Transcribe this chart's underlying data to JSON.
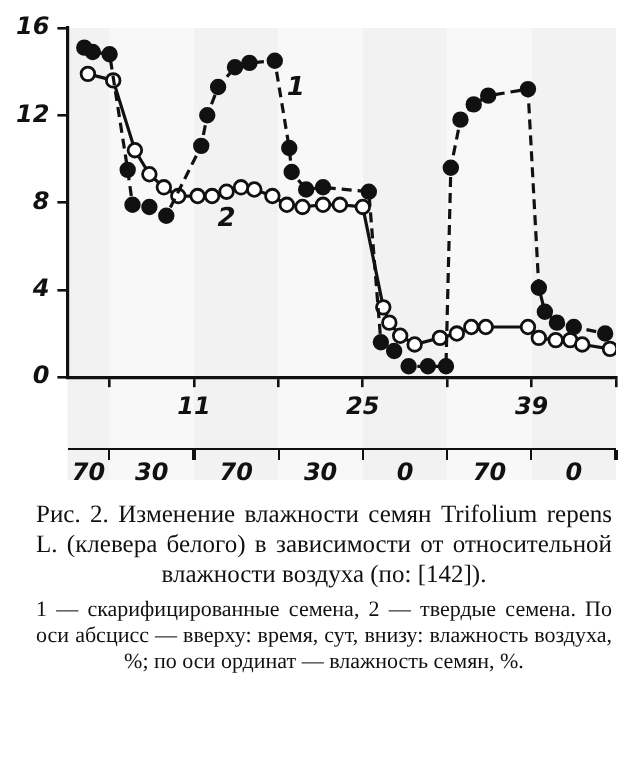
{
  "chart_data": {
    "type": "line",
    "title": "Рис. 2. Изменение влажности семян Trifolium repens L. (клевера белого) в зависимости от относительной влажности воздуха (по: [142]).",
    "annotations": [
      "1 — скарифицированные семена, 2 — твердые семена. По оси абсцисс — вверху: время, сут, внизу: влажность воздуха, %; по оси ординат — влажность семян, %."
    ],
    "xlim": [
      0.5,
      46
    ],
    "xticks": [
      {
        "value": 4,
        "label": null
      },
      11,
      {
        "value": 18,
        "label": null
      },
      25,
      {
        "value": 32,
        "label": null
      },
      39,
      {
        "value": 46,
        "label": null
      }
    ],
    "bands": [
      {
        "axis": "x",
        "from": 0.5,
        "to": 4,
        "label": "70",
        "color": "#f2f2f2"
      },
      {
        "axis": "x",
        "from": 4,
        "to": 11,
        "label": "30",
        "color": "#f8f8f8"
      },
      {
        "axis": "x",
        "from": 11,
        "to": 18,
        "label": "70",
        "color": "#f2f2f2"
      },
      {
        "axis": "x",
        "from": 18,
        "to": 25,
        "label": "30",
        "color": "#f8f8f8"
      },
      {
        "axis": "x",
        "from": 25,
        "to": 32,
        "label": "0",
        "color": "#f2f2f2"
      },
      {
        "axis": "x",
        "from": 32,
        "to": 39,
        "label": "70",
        "color": "#f8f8f8"
      },
      {
        "axis": "x",
        "from": 39,
        "to": 46,
        "label": "0",
        "color": "#f2f2f2"
      }
    ],
    "ylim": [
      0,
      16
    ],
    "yticks": [
      0,
      4,
      8,
      12,
      16
    ],
    "grid": false,
    "legend": false,
    "series": [
      {
        "name": "1",
        "color": "#111111",
        "marker": "circle",
        "line_style": "dashed",
        "x": [
          1.9,
          2.6,
          4,
          5.5,
          5.9,
          7.3,
          8.7,
          11.6,
          12.1,
          13,
          14.4,
          15.6,
          17.7,
          18.9,
          19.1,
          20.3,
          21.7,
          25.5,
          26.5,
          27.6,
          28.8,
          30.4,
          31.9,
          32.3,
          33.1,
          34.2,
          35.4,
          38.7,
          39.6,
          40.1,
          41.1,
          42.5,
          45.1
        ],
        "values": [
          15.1,
          14.9,
          14.8,
          9.5,
          7.9,
          7.8,
          7.4,
          10.6,
          12.0,
          13.3,
          14.2,
          14.4,
          14.5,
          10.5,
          9.4,
          8.6,
          8.7,
          8.5,
          1.6,
          1.2,
          0.5,
          0.5,
          0.5,
          9.6,
          11.8,
          12.5,
          12.9,
          13.2,
          4.1,
          3.0,
          2.5,
          2.3,
          2.0
        ]
      },
      {
        "name": "2",
        "color": "#111111",
        "marker": "circle",
        "line_style": "solid",
        "x": [
          2.2,
          4.3,
          6.1,
          7.3,
          8.5,
          9.7,
          11.3,
          12.5,
          13.7,
          14.9,
          16,
          17.5,
          18.7,
          20,
          21.7,
          23.1,
          25,
          26.7,
          27.2,
          28.1,
          29.3,
          31.4,
          32.8,
          34,
          35.2,
          38.7,
          39.6,
          41,
          42.2,
          43.2,
          45.5
        ],
        "values": [
          13.9,
          13.6,
          10.4,
          9.3,
          8.7,
          8.3,
          8.3,
          8.3,
          8.5,
          8.7,
          8.6,
          8.3,
          7.9,
          7.8,
          7.9,
          7.9,
          7.8,
          3.2,
          2.5,
          1.9,
          1.5,
          1.8,
          2.0,
          2.3,
          2.3,
          2.3,
          1.8,
          1.7,
          1.7,
          1.5,
          1.3
        ]
      }
    ]
  }
}
